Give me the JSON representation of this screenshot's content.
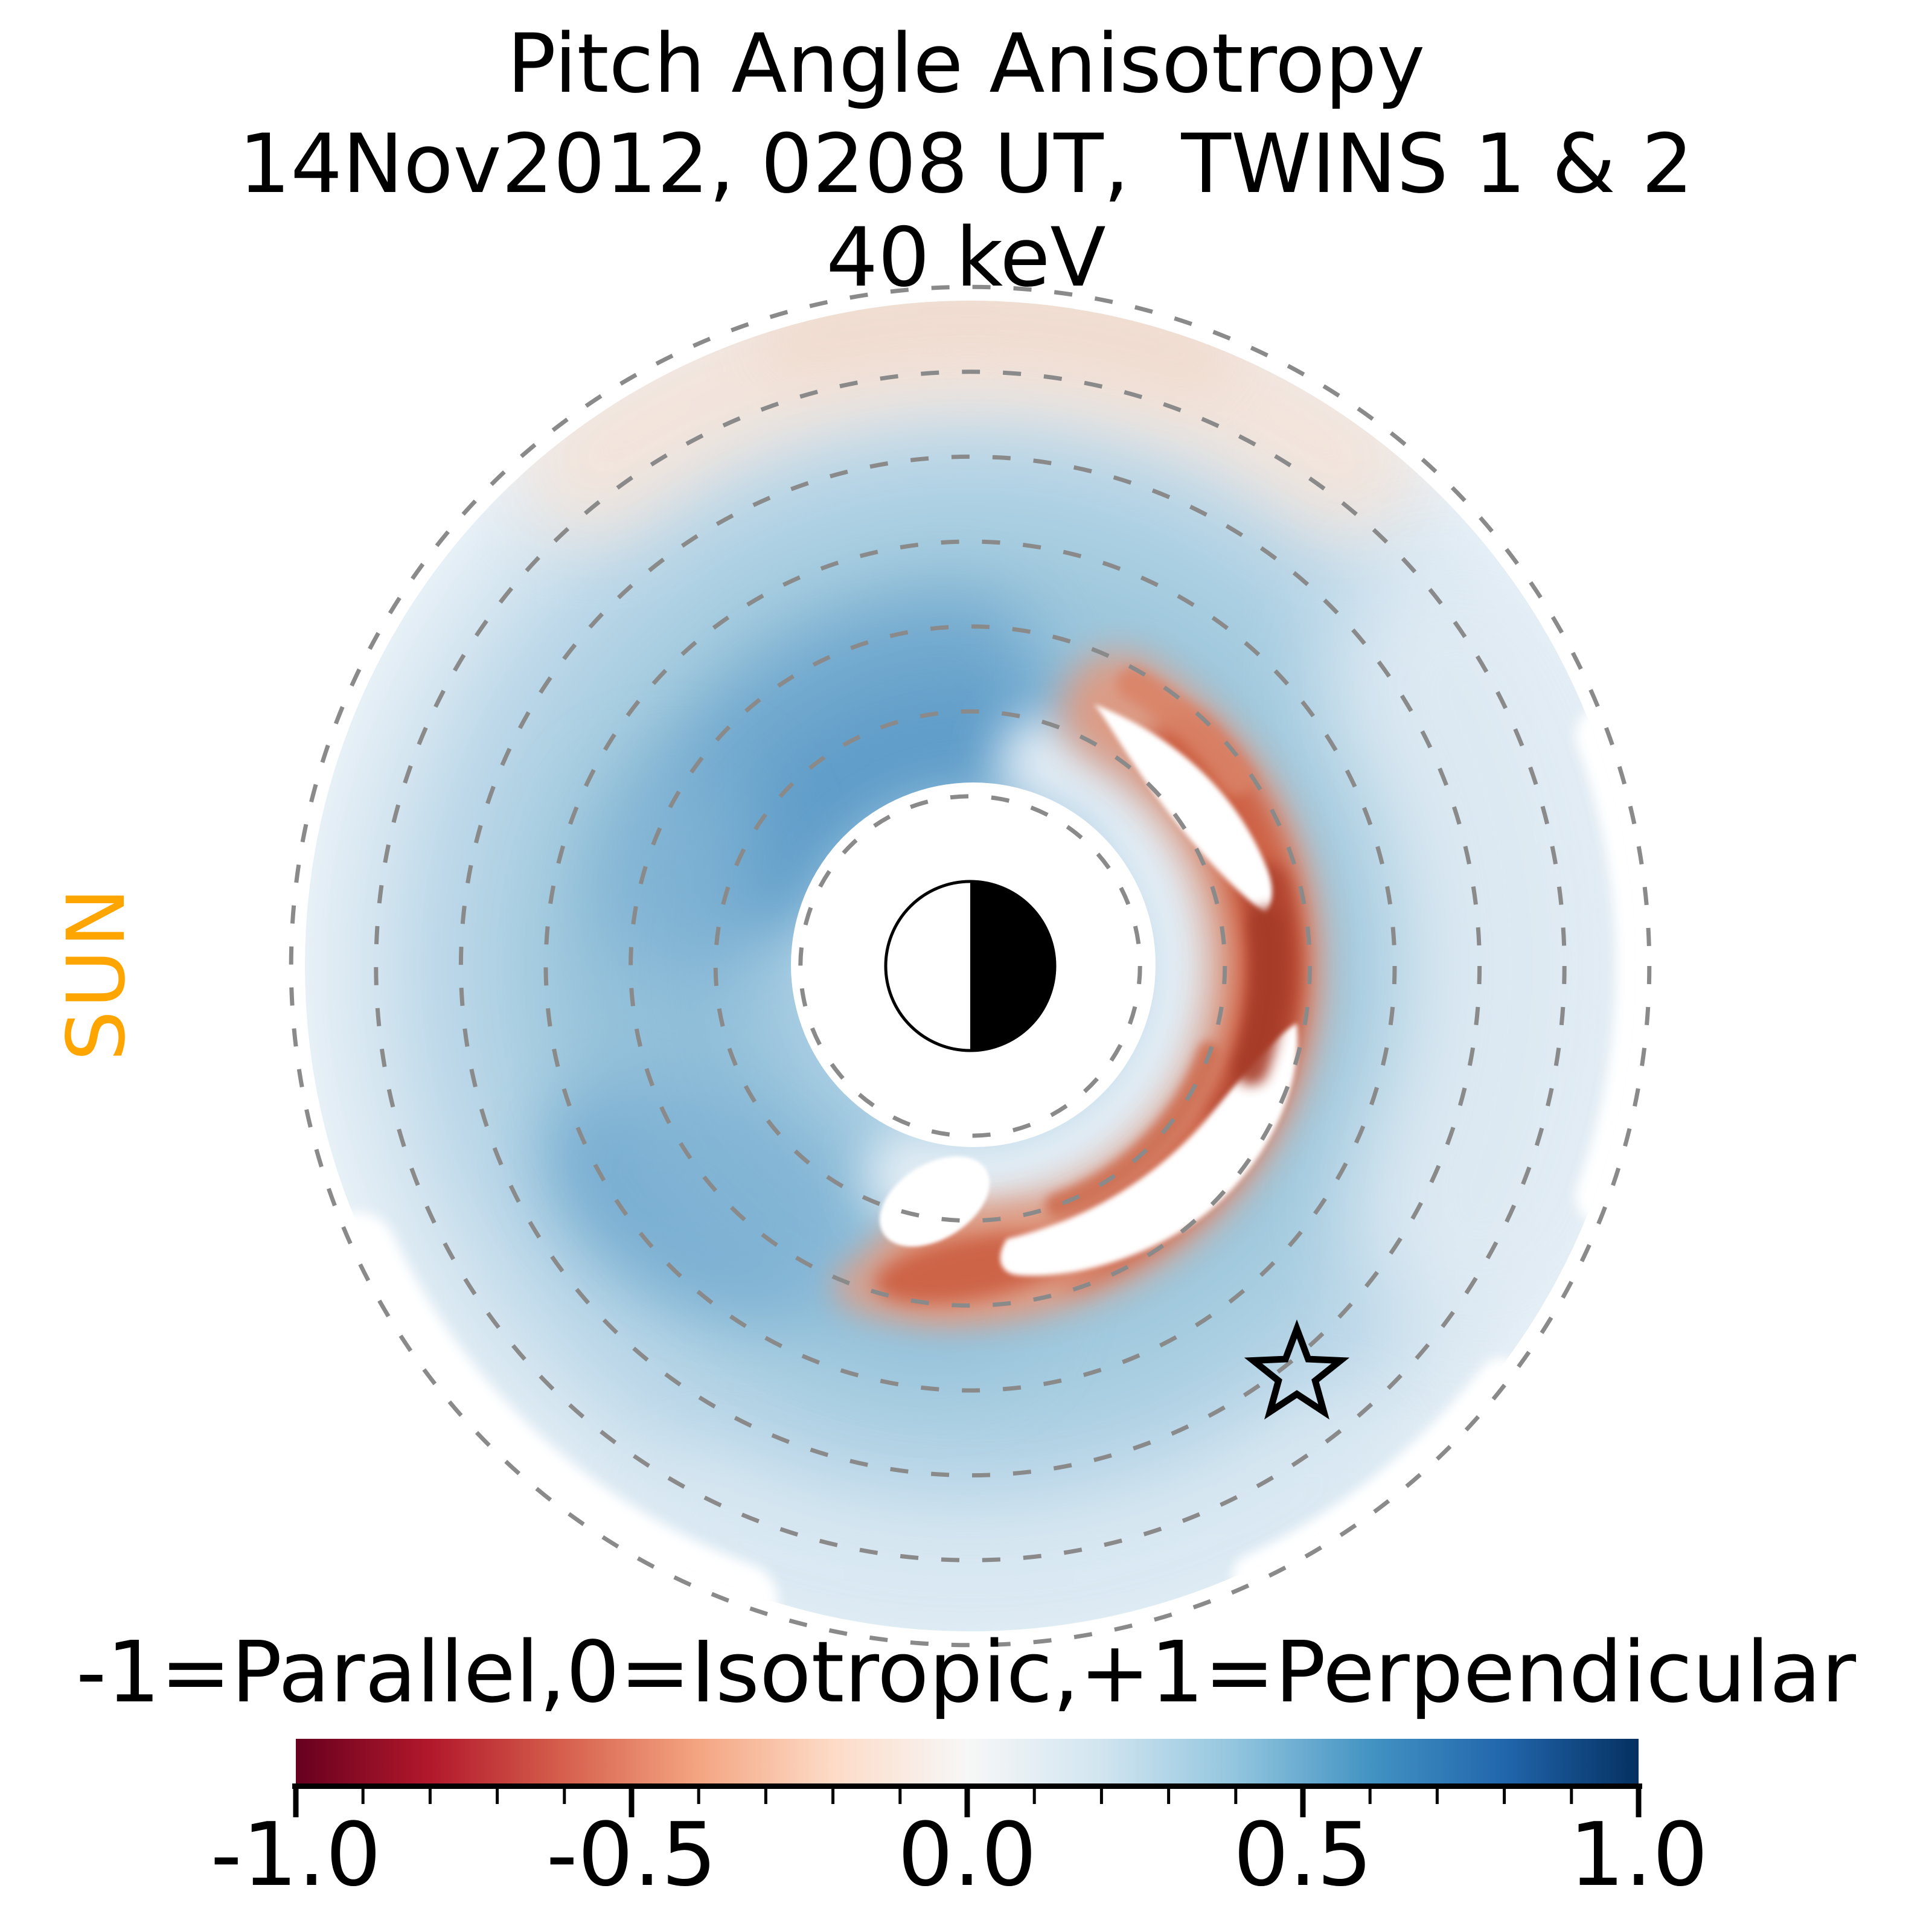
{
  "figure": {
    "title_lines": [
      "Pitch Angle Anisotropy",
      "14Nov2012, 0208 UT,  TWINS 1 & 2",
      "40 keV"
    ],
    "sun_label": "SUN"
  },
  "colorbar": {
    "label": "-1=Parallel,0=Isotropic,+1=Perpendicular",
    "ticks": [
      -1.0,
      -0.5,
      0.0,
      0.5,
      1.0
    ],
    "tick_labels": [
      "-1.0",
      "-0.5",
      "0.0",
      "0.5",
      "1.0"
    ],
    "minor_tick_step": 0.1,
    "range": [
      -1,
      1
    ],
    "colormap": "RdBu",
    "gradient_stops": [
      "#67001f",
      "#b2182b",
      "#d6604d",
      "#f4a582",
      "#fddbc7",
      "#f7f7f7",
      "#d1e5f0",
      "#92c5de",
      "#4393c3",
      "#2166ac",
      "#053061"
    ]
  },
  "colors": {
    "sun_label_orange": "#FFA500",
    "l_shell_ring_gray": "#8a8a8a",
    "background": "#ffffff",
    "parallel_red_arc": "#b04430",
    "perpendicular_blue": "#97c3db",
    "pale_parallel_pink": "#f4e4da"
  },
  "chart_data": {
    "type": "heatmap",
    "projection": "polar map of Earth's ring current viewed from above the north pole",
    "title": "Pitch Angle Anisotropy",
    "datetime": "14Nov2012, 0208 UT",
    "instrument": "TWINS 1 & 2",
    "energy": "40 keV",
    "value_range": [
      -1,
      1
    ],
    "value_meaning": {
      "-1": "Parallel",
      "0": "Isotropic",
      "+1": "Perpendicular"
    },
    "sun_direction": "left",
    "l_shell_rings_re": [
      2,
      3,
      4,
      5,
      6,
      7,
      8
    ],
    "map_outer_radius_re": 8,
    "earth_symbol": {
      "radius_re": 1,
      "dayside": "white (sunward, left half)",
      "nightside": "black (anti-sunward, right half)"
    },
    "inner_data_mask_radius_re": 2.15,
    "star_marker": {
      "x_re": 3.85,
      "y_re": -4.8,
      "note": "open black star symbol; +x right (anti-sunward), +y up"
    },
    "features": [
      {
        "name": "perpendicular (blue) anisotropy",
        "value_range": [
          0.2,
          0.6
        ],
        "extent": "most of map, r = 2-8 RE"
      },
      {
        "name": "parallel (red) crescent arc with white data gaps",
        "value_range": [
          -0.6,
          -0.2
        ],
        "location": "dusk-to-midnight C-shaped arc, r = 2.8-4 RE on right side"
      },
      {
        "name": "strongest perpendicular patches",
        "value": 0.6,
        "location": "r = 2.5-4.5 RE upper-left of Earth and r = 4-5 RE lower-left"
      },
      {
        "name": "slightly parallel pale pink region",
        "value_range": [
          -0.1,
          0
        ],
        "location": "outer map edge near top, r = 6.5-8 RE"
      },
      {
        "name": "data fades to white near outer boundary",
        "value": 0,
        "location": "right and bottom outer edge"
      }
    ],
    "legend_position": "horizontal colorbar at bottom",
    "grid": "dashed gray circles every 1 RE from L=2 to L=8"
  }
}
